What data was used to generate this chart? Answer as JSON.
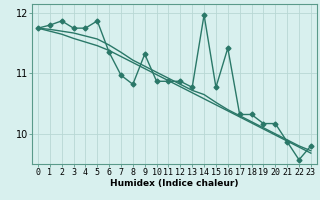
{
  "xlabel": "Humidex (Indice chaleur)",
  "x": [
    0,
    1,
    2,
    3,
    4,
    5,
    6,
    7,
    8,
    9,
    10,
    11,
    12,
    13,
    14,
    15,
    16,
    17,
    18,
    19,
    20,
    21,
    22,
    23
  ],
  "y_main": [
    11.75,
    11.8,
    11.87,
    11.75,
    11.75,
    11.87,
    11.35,
    10.97,
    10.82,
    11.32,
    10.87,
    10.87,
    10.87,
    10.77,
    11.97,
    10.77,
    11.42,
    10.32,
    10.32,
    10.17,
    10.17,
    9.87,
    9.57,
    9.8
  ],
  "y_trend1": [
    11.75,
    11.7,
    11.65,
    11.58,
    11.52,
    11.46,
    11.38,
    11.28,
    11.18,
    11.08,
    10.98,
    10.88,
    10.78,
    10.68,
    10.58,
    10.48,
    10.38,
    10.28,
    10.18,
    10.08,
    9.98,
    9.88,
    9.78,
    9.68
  ],
  "y_trend2": [
    11.75,
    11.73,
    11.7,
    11.67,
    11.62,
    11.57,
    11.47,
    11.35,
    11.22,
    11.12,
    11.02,
    10.92,
    10.82,
    10.72,
    10.65,
    10.52,
    10.4,
    10.3,
    10.2,
    10.1,
    10.0,
    9.9,
    9.8,
    9.72
  ],
  "bg_color": "#d8f0ee",
  "grid_color": "#b8d8d4",
  "line_color": "#2a7868",
  "marker": "D",
  "marker_size": 2.5,
  "ylim": [
    9.5,
    12.15
  ],
  "yticks": [
    10,
    11,
    12
  ],
  "xlim": [
    -0.5,
    23.5
  ],
  "linewidth": 1.0,
  "tick_fontsize": 6.0,
  "xlabel_fontsize": 6.5
}
